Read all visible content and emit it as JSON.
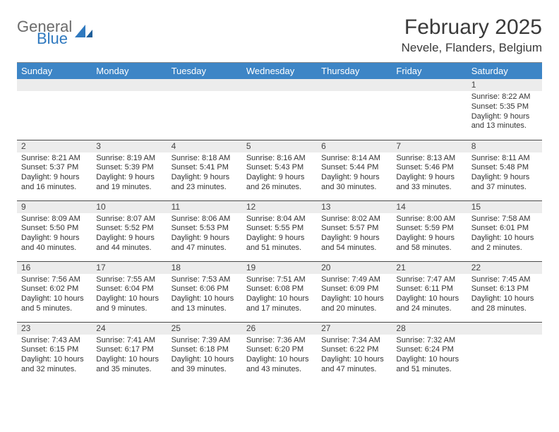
{
  "logo": {
    "general": "General",
    "blue": "Blue"
  },
  "title": "February 2025",
  "location": "Nevele, Flanders, Belgium",
  "colors": {
    "header_bg": "#3d85c6",
    "header_fg": "#ffffff",
    "daynum_bg": "#ececec",
    "rule": "#4a4a4a",
    "logo_gray": "#6b6b6b",
    "logo_blue": "#2f79bf"
  },
  "day_headers": [
    "Sunday",
    "Monday",
    "Tuesday",
    "Wednesday",
    "Thursday",
    "Friday",
    "Saturday"
  ],
  "weeks": [
    [
      {
        "n": "",
        "lines": []
      },
      {
        "n": "",
        "lines": []
      },
      {
        "n": "",
        "lines": []
      },
      {
        "n": "",
        "lines": []
      },
      {
        "n": "",
        "lines": []
      },
      {
        "n": "",
        "lines": []
      },
      {
        "n": "1",
        "lines": [
          "Sunrise: 8:22 AM",
          "Sunset: 5:35 PM",
          "Daylight: 9 hours and 13 minutes."
        ]
      }
    ],
    [
      {
        "n": "2",
        "lines": [
          "Sunrise: 8:21 AM",
          "Sunset: 5:37 PM",
          "Daylight: 9 hours and 16 minutes."
        ]
      },
      {
        "n": "3",
        "lines": [
          "Sunrise: 8:19 AM",
          "Sunset: 5:39 PM",
          "Daylight: 9 hours and 19 minutes."
        ]
      },
      {
        "n": "4",
        "lines": [
          "Sunrise: 8:18 AM",
          "Sunset: 5:41 PM",
          "Daylight: 9 hours and 23 minutes."
        ]
      },
      {
        "n": "5",
        "lines": [
          "Sunrise: 8:16 AM",
          "Sunset: 5:43 PM",
          "Daylight: 9 hours and 26 minutes."
        ]
      },
      {
        "n": "6",
        "lines": [
          "Sunrise: 8:14 AM",
          "Sunset: 5:44 PM",
          "Daylight: 9 hours and 30 minutes."
        ]
      },
      {
        "n": "7",
        "lines": [
          "Sunrise: 8:13 AM",
          "Sunset: 5:46 PM",
          "Daylight: 9 hours and 33 minutes."
        ]
      },
      {
        "n": "8",
        "lines": [
          "Sunrise: 8:11 AM",
          "Sunset: 5:48 PM",
          "Daylight: 9 hours and 37 minutes."
        ]
      }
    ],
    [
      {
        "n": "9",
        "lines": [
          "Sunrise: 8:09 AM",
          "Sunset: 5:50 PM",
          "Daylight: 9 hours and 40 minutes."
        ]
      },
      {
        "n": "10",
        "lines": [
          "Sunrise: 8:07 AM",
          "Sunset: 5:52 PM",
          "Daylight: 9 hours and 44 minutes."
        ]
      },
      {
        "n": "11",
        "lines": [
          "Sunrise: 8:06 AM",
          "Sunset: 5:53 PM",
          "Daylight: 9 hours and 47 minutes."
        ]
      },
      {
        "n": "12",
        "lines": [
          "Sunrise: 8:04 AM",
          "Sunset: 5:55 PM",
          "Daylight: 9 hours and 51 minutes."
        ]
      },
      {
        "n": "13",
        "lines": [
          "Sunrise: 8:02 AM",
          "Sunset: 5:57 PM",
          "Daylight: 9 hours and 54 minutes."
        ]
      },
      {
        "n": "14",
        "lines": [
          "Sunrise: 8:00 AM",
          "Sunset: 5:59 PM",
          "Daylight: 9 hours and 58 minutes."
        ]
      },
      {
        "n": "15",
        "lines": [
          "Sunrise: 7:58 AM",
          "Sunset: 6:01 PM",
          "Daylight: 10 hours and 2 minutes."
        ]
      }
    ],
    [
      {
        "n": "16",
        "lines": [
          "Sunrise: 7:56 AM",
          "Sunset: 6:02 PM",
          "Daylight: 10 hours and 5 minutes."
        ]
      },
      {
        "n": "17",
        "lines": [
          "Sunrise: 7:55 AM",
          "Sunset: 6:04 PM",
          "Daylight: 10 hours and 9 minutes."
        ]
      },
      {
        "n": "18",
        "lines": [
          "Sunrise: 7:53 AM",
          "Sunset: 6:06 PM",
          "Daylight: 10 hours and 13 minutes."
        ]
      },
      {
        "n": "19",
        "lines": [
          "Sunrise: 7:51 AM",
          "Sunset: 6:08 PM",
          "Daylight: 10 hours and 17 minutes."
        ]
      },
      {
        "n": "20",
        "lines": [
          "Sunrise: 7:49 AM",
          "Sunset: 6:09 PM",
          "Daylight: 10 hours and 20 minutes."
        ]
      },
      {
        "n": "21",
        "lines": [
          "Sunrise: 7:47 AM",
          "Sunset: 6:11 PM",
          "Daylight: 10 hours and 24 minutes."
        ]
      },
      {
        "n": "22",
        "lines": [
          "Sunrise: 7:45 AM",
          "Sunset: 6:13 PM",
          "Daylight: 10 hours and 28 minutes."
        ]
      }
    ],
    [
      {
        "n": "23",
        "lines": [
          "Sunrise: 7:43 AM",
          "Sunset: 6:15 PM",
          "Daylight: 10 hours and 32 minutes."
        ]
      },
      {
        "n": "24",
        "lines": [
          "Sunrise: 7:41 AM",
          "Sunset: 6:17 PM",
          "Daylight: 10 hours and 35 minutes."
        ]
      },
      {
        "n": "25",
        "lines": [
          "Sunrise: 7:39 AM",
          "Sunset: 6:18 PM",
          "Daylight: 10 hours and 39 minutes."
        ]
      },
      {
        "n": "26",
        "lines": [
          "Sunrise: 7:36 AM",
          "Sunset: 6:20 PM",
          "Daylight: 10 hours and 43 minutes."
        ]
      },
      {
        "n": "27",
        "lines": [
          "Sunrise: 7:34 AM",
          "Sunset: 6:22 PM",
          "Daylight: 10 hours and 47 minutes."
        ]
      },
      {
        "n": "28",
        "lines": [
          "Sunrise: 7:32 AM",
          "Sunset: 6:24 PM",
          "Daylight: 10 hours and 51 minutes."
        ]
      },
      {
        "n": "",
        "lines": []
      }
    ]
  ]
}
